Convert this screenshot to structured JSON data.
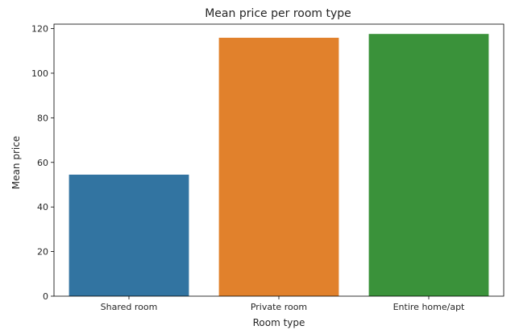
{
  "chart_data": {
    "type": "bar",
    "title": "Mean price per room type",
    "xlabel": "Room type",
    "ylabel": "Mean price",
    "categories": [
      "Shared room",
      "Private room",
      "Entire home/apt"
    ],
    "values": [
      54.5,
      115.9,
      117.6
    ],
    "colors": [
      "#3274a1",
      "#e1812c",
      "#3a923a"
    ],
    "ylim": [
      0,
      122
    ],
    "yticks": [
      0,
      20,
      40,
      60,
      80,
      100,
      120
    ],
    "grid": false,
    "legend": "none"
  }
}
